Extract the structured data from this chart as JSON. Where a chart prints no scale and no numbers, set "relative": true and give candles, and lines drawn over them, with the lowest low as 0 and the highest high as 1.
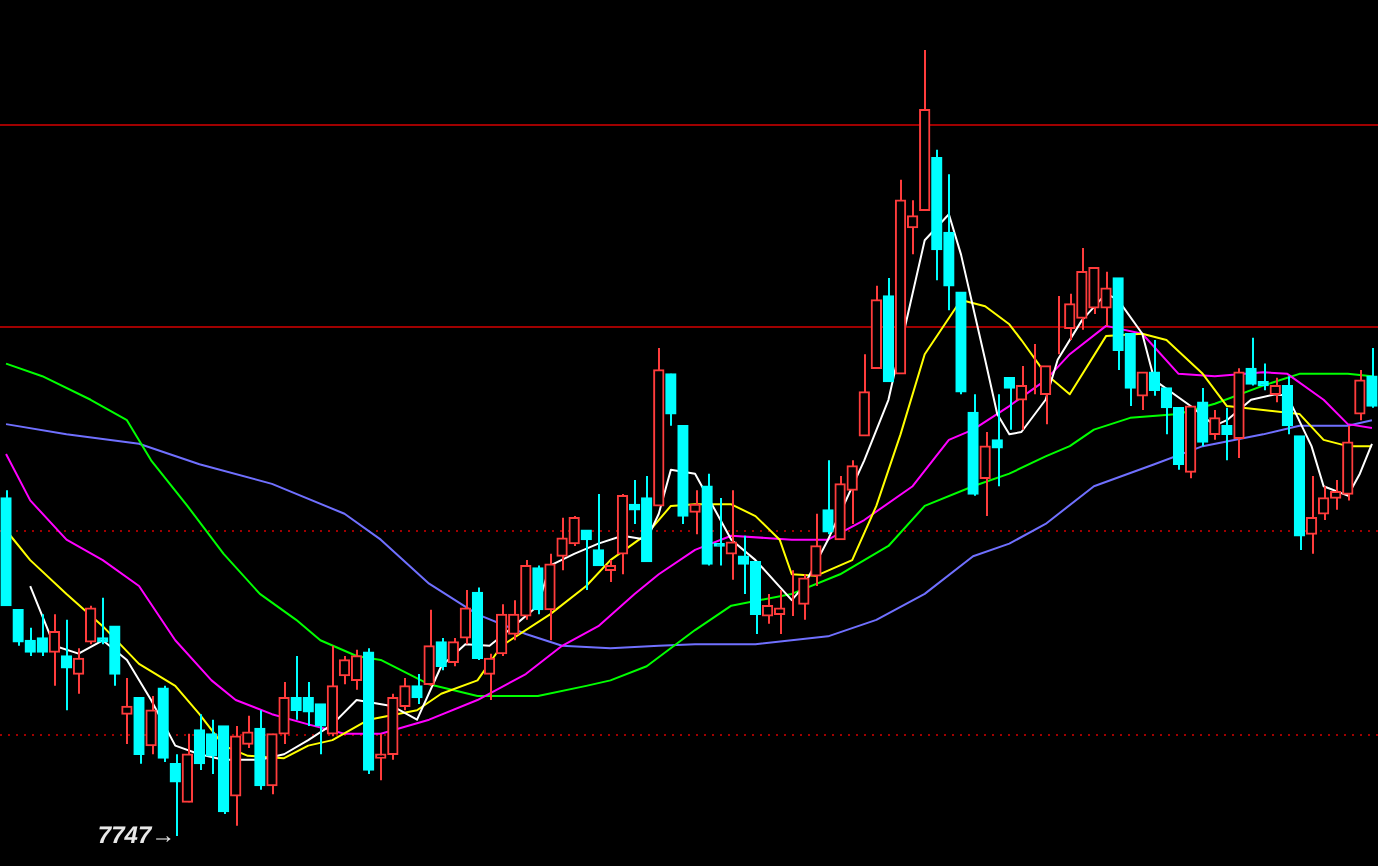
{
  "chart_data": {
    "type": "candlestick",
    "relative": true,
    "tick_labels": false,
    "categories": [
      null,
      null,
      null,
      null,
      null,
      null,
      null,
      null,
      null,
      null,
      null,
      null,
      null,
      null,
      null,
      null,
      null,
      null,
      null,
      null,
      null,
      null,
      null,
      null,
      null,
      null,
      null,
      null,
      null,
      null,
      null,
      null,
      null,
      null,
      null,
      null,
      null,
      null,
      null,
      null,
      null,
      null,
      null,
      null,
      null,
      null,
      null,
      null,
      null,
      null,
      null,
      null,
      null,
      null,
      null,
      null,
      null,
      null,
      null,
      null,
      null,
      null,
      null,
      null,
      null,
      null,
      null,
      null,
      null,
      null,
      null,
      null,
      null,
      null,
      null,
      null,
      null,
      null,
      null,
      null,
      null,
      null,
      null,
      null,
      null,
      null,
      null,
      null,
      null,
      null,
      null,
      null,
      null,
      null,
      null,
      null,
      null,
      null,
      null,
      null,
      null,
      null,
      null,
      null,
      null,
      null,
      null,
      null,
      null,
      null,
      null,
      null,
      null,
      null
    ],
    "ohlc": [
      [
        0.43,
        0.44,
        0.293,
        0.293
      ],
      [
        0.288,
        0.288,
        0.242,
        0.247
      ],
      [
        0.249,
        0.265,
        0.229,
        0.234
      ],
      [
        0.252,
        0.282,
        0.229,
        0.234
      ],
      [
        0.234,
        0.282,
        0.191,
        0.26
      ],
      [
        0.229,
        0.275,
        0.16,
        0.214
      ],
      [
        0.206,
        0.239,
        0.181,
        0.226
      ],
      [
        0.247,
        0.293,
        0.244,
        0.29
      ],
      [
        0.252,
        0.303,
        0.244,
        0.247
      ],
      [
        0.267,
        0.267,
        0.191,
        0.206
      ],
      [
        0.155,
        0.201,
        0.117,
        0.165
      ],
      [
        0.176,
        0.176,
        0.092,
        0.104
      ],
      [
        0.115,
        0.178,
        0.104,
        0.16
      ],
      [
        0.188,
        0.191,
        0.094,
        0.099
      ],
      [
        0.092,
        0.104,
        0,
        0.069
      ],
      [
        0.043,
        0.13,
        0.043,
        0.104
      ],
      [
        0.135,
        0.155,
        0.084,
        0.092
      ],
      [
        0.13,
        0.148,
        0.079,
        0.102
      ],
      [
        0.14,
        0.14,
        0.028,
        0.031
      ],
      [
        0.051,
        0.14,
        0.013,
        0.127
      ],
      [
        0.117,
        0.153,
        0.112,
        0.132
      ],
      [
        0.137,
        0.16,
        0.059,
        0.064
      ],
      [
        0.064,
        0.13,
        0.053,
        0.13
      ],
      [
        0.13,
        0.196,
        0.117,
        0.176
      ],
      [
        0.176,
        0.229,
        0.148,
        0.16
      ],
      [
        0.176,
        0.196,
        0.14,
        0.158
      ],
      [
        0.168,
        0.168,
        0.104,
        0.14
      ],
      [
        0.13,
        0.242,
        0.127,
        0.191
      ],
      [
        0.204,
        0.229,
        0.193,
        0.224
      ],
      [
        0.198,
        0.237,
        0.186,
        0.229
      ],
      [
        0.234,
        0.239,
        0.079,
        0.084
      ],
      [
        0.099,
        0.13,
        0.071,
        0.104
      ],
      [
        0.104,
        0.181,
        0.097,
        0.176
      ],
      [
        0.165,
        0.201,
        0.16,
        0.191
      ],
      [
        0.191,
        0.206,
        0.168,
        0.176
      ],
      [
        0.193,
        0.288,
        0.191,
        0.242
      ],
      [
        0.247,
        0.252,
        0.211,
        0.216
      ],
      [
        0.221,
        0.252,
        0.216,
        0.247
      ],
      [
        0.252,
        0.313,
        0.244,
        0.29
      ],
      [
        0.31,
        0.316,
        0.224,
        0.226
      ],
      [
        0.206,
        0.232,
        0.173,
        0.226
      ],
      [
        0.232,
        0.295,
        0.229,
        0.282
      ],
      [
        0.257,
        0.3,
        0.249,
        0.282
      ],
      [
        0.28,
        0.351,
        0.275,
        0.344
      ],
      [
        0.341,
        0.344,
        0.282,
        0.288
      ],
      [
        0.288,
        0.359,
        0.249,
        0.346
      ],
      [
        0.356,
        0.405,
        0.338,
        0.379
      ],
      [
        0.372,
        0.407,
        0.369,
        0.405
      ],
      [
        0.389,
        0.389,
        0.313,
        0.377
      ],
      [
        0.364,
        0.435,
        0.344,
        0.344
      ],
      [
        0.338,
        0.351,
        0.323,
        0.344
      ],
      [
        0.359,
        0.435,
        0.333,
        0.433
      ],
      [
        0.422,
        0.453,
        0.397,
        0.415
      ],
      [
        0.43,
        0.458,
        0.349,
        0.349
      ],
      [
        0.42,
        0.621,
        0.42,
        0.593
      ],
      [
        0.588,
        0.588,
        0.522,
        0.537
      ],
      [
        0.522,
        0.522,
        0.397,
        0.407
      ],
      [
        0.412,
        0.44,
        0.384,
        0.422
      ],
      [
        0.445,
        0.461,
        0.344,
        0.346
      ],
      [
        0.372,
        0.43,
        0.344,
        0.369
      ],
      [
        0.359,
        0.44,
        0.326,
        0.374
      ],
      [
        0.356,
        0.382,
        0.308,
        0.346
      ],
      [
        0.349,
        0.349,
        0.257,
        0.282
      ],
      [
        0.28,
        0.308,
        0.27,
        0.293
      ],
      [
        0.282,
        0.313,
        0.257,
        0.29
      ],
      [
        0.288,
        0.338,
        0.28,
        0.288
      ],
      [
        0.295,
        0.333,
        0.275,
        0.328
      ],
      [
        0.331,
        0.41,
        0.318,
        0.369
      ],
      [
        0.415,
        0.478,
        0.384,
        0.387
      ],
      [
        0.377,
        0.458,
        0.377,
        0.448
      ],
      [
        0.44,
        0.478,
        0.397,
        0.471
      ],
      [
        0.509,
        0.613,
        0.509,
        0.565
      ],
      [
        0.595,
        0.7,
        0.595,
        0.682
      ],
      [
        0.687,
        0.71,
        0.578,
        0.578
      ],
      [
        0.588,
        0.835,
        0.588,
        0.809
      ],
      [
        0.774,
        0.809,
        0.74,
        0.789
      ],
      [
        0.796,
        1,
        0.796,
        0.924
      ],
      [
        0.863,
        0.873,
        0.707,
        0.746
      ],
      [
        0.768,
        0.842,
        0.669,
        0.7
      ],
      [
        0.692,
        0.692,
        0.562,
        0.565
      ],
      [
        0.539,
        0.562,
        0.433,
        0.435
      ],
      [
        0.455,
        0.514,
        0.407,
        0.496
      ],
      [
        0.504,
        0.562,
        0.445,
        0.494
      ],
      [
        0.583,
        0.583,
        0.517,
        0.57
      ],
      [
        0.555,
        0.598,
        0.517,
        0.573
      ],
      [
        0.575,
        0.626,
        0.562,
        0.575
      ],
      [
        0.562,
        0.598,
        0.524,
        0.598
      ],
      [
        0.631,
        0.687,
        0.613,
        0.631
      ],
      [
        0.646,
        0.69,
        0.631,
        0.677
      ],
      [
        0.659,
        0.748,
        0.644,
        0.718
      ],
      [
        0.672,
        0.723,
        0.664,
        0.723
      ],
      [
        0.672,
        0.718,
        0.649,
        0.697
      ],
      [
        0.71,
        0.71,
        0.593,
        0.618
      ],
      [
        0.639,
        0.639,
        0.547,
        0.57
      ],
      [
        0.56,
        0.59,
        0.542,
        0.59
      ],
      [
        0.59,
        0.631,
        0.56,
        0.567
      ],
      [
        0.57,
        0.57,
        0.511,
        0.545
      ],
      [
        0.545,
        0.545,
        0.466,
        0.473
      ],
      [
        0.463,
        0.547,
        0.455,
        0.547
      ],
      [
        0.552,
        0.57,
        0.496,
        0.501
      ],
      [
        0.511,
        0.542,
        0.504,
        0.532
      ],
      [
        0.522,
        0.545,
        0.478,
        0.511
      ],
      [
        0.506,
        0.595,
        0.481,
        0.59
      ],
      [
        0.595,
        0.634,
        0.573,
        0.575
      ],
      [
        0.578,
        0.601,
        0.567,
        0.573
      ],
      [
        0.562,
        0.583,
        0.552,
        0.573
      ],
      [
        0.573,
        0.585,
        0.511,
        0.522
      ],
      [
        0.509,
        0.509,
        0.364,
        0.382
      ],
      [
        0.384,
        0.458,
        0.359,
        0.405
      ],
      [
        0.41,
        0.445,
        0.402,
        0.43
      ],
      [
        0.43,
        0.453,
        0.415,
        0.438
      ],
      [
        0.435,
        0.522,
        0.427,
        0.501
      ],
      [
        0.537,
        0.593,
        0.529,
        0.58
      ],
      [
        0.585,
        0.621,
        0.545,
        0.547
      ]
    ],
    "series": [
      {
        "type": "line",
        "color": "#ffffff",
        "values": [
          null,
          null,
          0.318,
          null,
          0.242,
          null,
          0.232,
          null,
          0.249,
          null,
          0.224,
          null,
          0.173,
          null,
          0.115,
          null,
          0.104,
          null,
          0.097,
          null,
          null,
          0.097,
          null,
          0.104,
          null,
          0.122,
          null,
          0.142,
          null,
          0.173,
          null,
          null,
          0.165,
          null,
          0.148,
          null,
          0.216,
          null,
          0.244,
          null,
          0.242,
          null,
          0.267,
          null,
          0.293,
          0.344,
          null,
          0.359,
          null,
          0.372,
          null,
          0.382,
          null,
          0.377,
          0.41,
          0.466,
          null,
          0.461,
          null,
          null,
          0.377,
          null,
          0.351,
          null,
          null,
          0.3,
          0.318,
          null,
          0.377,
          null,
          null,
          0.478,
          null,
          0.555,
          null,
          null,
          0.758,
          null,
          0.791,
          0.74,
          null,
          0.606,
          0.537,
          0.511,
          0.514,
          null,
          0.555,
          0.606,
          null,
          0.656,
          null,
          0.69,
          0.682,
          null,
          0.639,
          0.58,
          null,
          null,
          0.547,
          null,
          0.522,
          0.529,
          null,
          0.555,
          null,
          0.562,
          0.56,
          null,
          0.496,
          0.445,
          null,
          0.433,
          0.461,
          0.499
        ]
      },
      {
        "type": "line",
        "color": "#ffff00",
        "values": [
          0.389,
          null,
          0.351,
          null,
          null,
          0.308,
          null,
          null,
          0.267,
          null,
          null,
          0.219,
          null,
          null,
          0.191,
          null,
          0.155,
          null,
          0.115,
          null,
          0.102,
          null,
          null,
          0.099,
          null,
          0.115,
          null,
          0.122,
          null,
          null,
          0.148,
          null,
          null,
          null,
          0.16,
          null,
          0.181,
          null,
          null,
          0.198,
          null,
          0.242,
          null,
          null,
          null,
          0.282,
          null,
          null,
          0.318,
          null,
          0.351,
          null,
          null,
          0.384,
          null,
          0.42,
          null,
          0.422,
          null,
          null,
          0.422,
          null,
          0.407,
          null,
          0.377,
          0.333,
          null,
          0.331,
          null,
          null,
          0.351,
          null,
          0.42,
          null,
          0.511,
          null,
          0.613,
          null,
          null,
          0.682,
          null,
          0.674,
          null,
          0.651,
          0.631,
          null,
          0.588,
          null,
          0.562,
          null,
          null,
          0.636,
          null,
          null,
          0.639,
          null,
          0.631,
          null,
          null,
          0.588,
          null,
          0.547,
          null,
          null,
          0.542,
          null,
          null,
          0.537,
          null,
          0.504,
          null,
          0.496,
          null,
          0.496
        ]
      },
      {
        "type": "line",
        "color": "#ff00ff",
        "values": [
          0.486,
          null,
          0.427,
          null,
          null,
          0.377,
          null,
          null,
          0.351,
          null,
          null,
          0.318,
          null,
          null,
          0.249,
          null,
          null,
          0.198,
          null,
          0.173,
          null,
          null,
          0.155,
          null,
          null,
          0.142,
          null,
          null,
          0.13,
          null,
          null,
          0.13,
          null,
          null,
          null,
          0.148,
          null,
          null,
          null,
          0.173,
          null,
          null,
          null,
          0.206,
          null,
          null,
          0.242,
          null,
          null,
          0.267,
          null,
          null,
          0.308,
          null,
          0.333,
          null,
          null,
          0.364,
          null,
          null,
          0.382,
          null,
          null,
          null,
          null,
          0.377,
          null,
          null,
          0.377,
          null,
          null,
          0.402,
          null,
          null,
          null,
          0.445,
          null,
          null,
          0.504,
          null,
          0.517,
          null,
          null,
          0.547,
          null,
          null,
          0.58,
          null,
          0.613,
          null,
          null,
          0.649,
          null,
          null,
          0.639,
          null,
          null,
          0.588,
          null,
          null,
          0.585,
          null,
          null,
          null,
          0.59,
          null,
          0.588,
          null,
          null,
          0.555,
          null,
          0.524,
          null,
          0.519
        ]
      },
      {
        "type": "line",
        "color": "#00ff00",
        "values": [
          0.601,
          null,
          null,
          0.585,
          null,
          null,
          null,
          0.555,
          null,
          null,
          0.529,
          null,
          0.478,
          null,
          null,
          0.42,
          null,
          null,
          0.359,
          null,
          null,
          0.308,
          null,
          null,
          0.275,
          null,
          0.249,
          null,
          null,
          0.229,
          null,
          0.224,
          null,
          null,
          null,
          0.193,
          null,
          null,
          null,
          0.178,
          null,
          null,
          null,
          null,
          0.178,
          null,
          null,
          null,
          0.191,
          null,
          0.198,
          null,
          null,
          0.216,
          null,
          null,
          null,
          0.262,
          null,
          null,
          0.293,
          null,
          null,
          null,
          null,
          0.308,
          null,
          null,
          null,
          0.333,
          null,
          null,
          null,
          0.369,
          null,
          null,
          0.42,
          null,
          null,
          null,
          0.445,
          null,
          null,
          0.461,
          null,
          null,
          0.483,
          null,
          0.496,
          null,
          0.517,
          null,
          null,
          0.532,
          null,
          null,
          null,
          0.537,
          null,
          null,
          0.55,
          null,
          null,
          null,
          0.573,
          null,
          null,
          0.588,
          null,
          null,
          null,
          0.588,
          null,
          0.585
        ]
      },
      {
        "type": "line",
        "color": "#7070ff",
        "values": [
          0.524,
          null,
          null,
          null,
          null,
          0.511,
          null,
          null,
          null,
          null,
          null,
          0.499,
          null,
          null,
          null,
          null,
          0.473,
          null,
          null,
          null,
          null,
          null,
          0.448,
          null,
          null,
          null,
          null,
          null,
          0.41,
          null,
          null,
          0.377,
          null,
          null,
          null,
          0.321,
          null,
          null,
          null,
          0.282,
          null,
          null,
          null,
          0.257,
          null,
          null,
          0.242,
          null,
          null,
          null,
          0.239,
          null,
          null,
          null,
          0.242,
          null,
          null,
          0.244,
          null,
          null,
          null,
          null,
          0.244,
          null,
          null,
          null,
          null,
          null,
          0.254,
          null,
          null,
          null,
          0.275,
          null,
          null,
          null,
          0.308,
          null,
          null,
          null,
          0.356,
          null,
          null,
          0.372,
          null,
          null,
          0.397,
          null,
          null,
          null,
          0.445,
          null,
          null,
          null,
          null,
          0.473,
          null,
          null,
          null,
          0.496,
          null,
          null,
          null,
          null,
          0.511,
          null,
          null,
          0.522,
          null,
          null,
          null,
          0.522,
          null,
          0.529
        ]
      }
    ],
    "ref_lines": [
      {
        "axis": "y",
        "value": 0.906,
        "color": "#a00000",
        "line_style": "solid"
      },
      {
        "axis": "y",
        "value": 0.649,
        "color": "#a00000",
        "line_style": "solid"
      },
      {
        "axis": "y",
        "value": 0.389,
        "color": "#a00000",
        "line_style": "dotted"
      },
      {
        "axis": "y",
        "value": 0.13,
        "color": "#a00000",
        "line_style": "dotted"
      }
    ],
    "annotations": [
      "7747→"
    ]
  }
}
